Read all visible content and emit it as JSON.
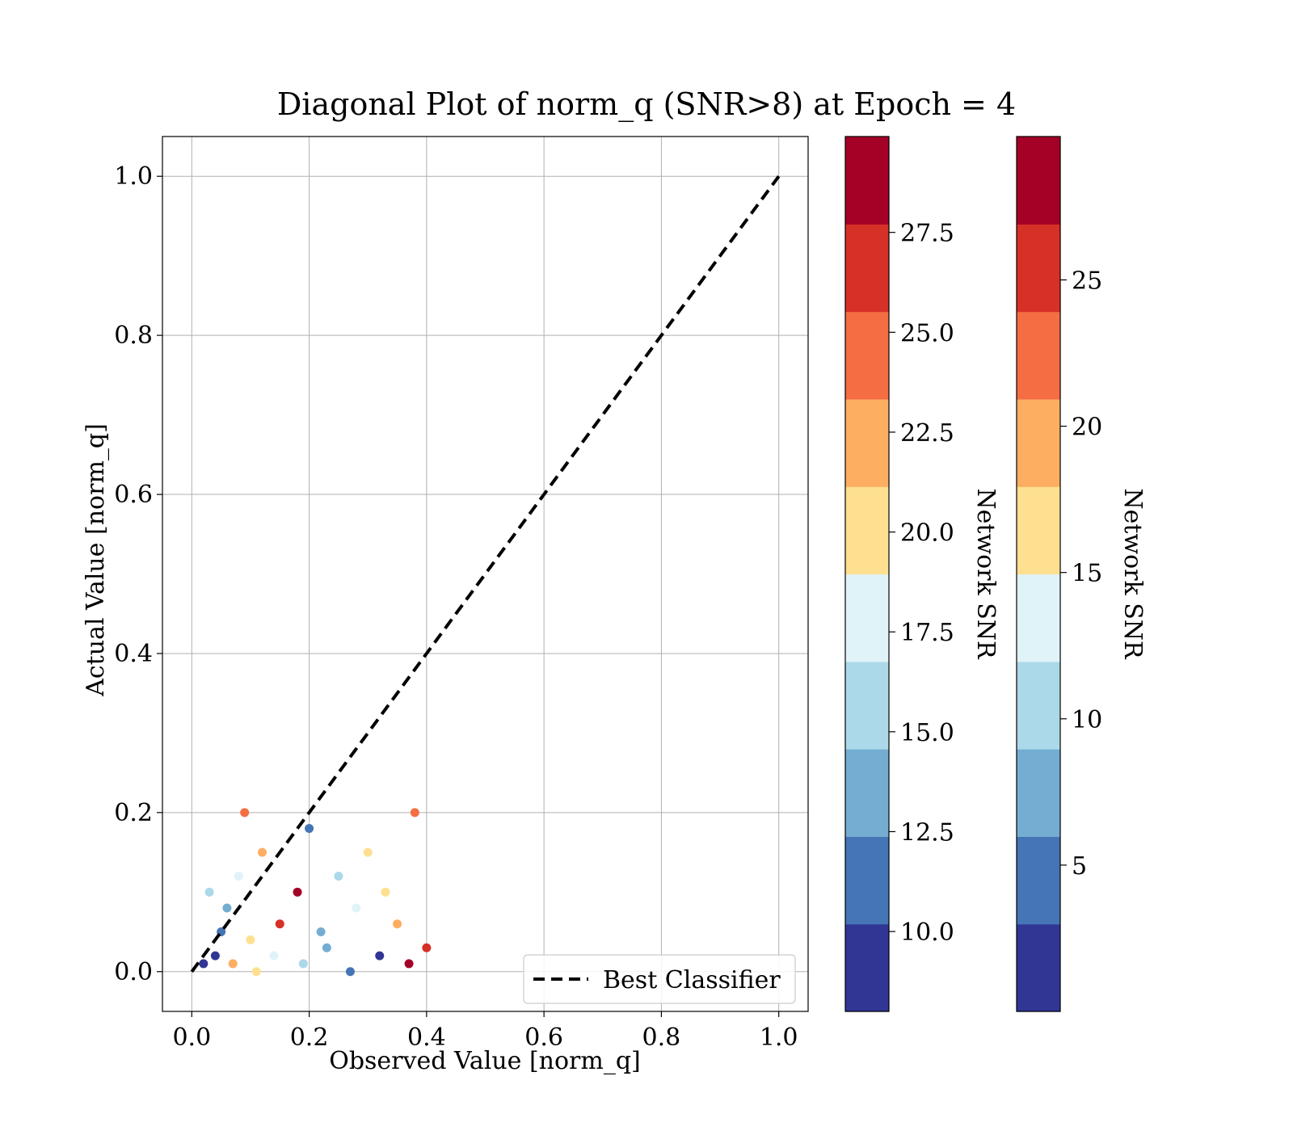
{
  "chart_data": {
    "type": "scatter",
    "title": "Diagonal Plot of norm_q (SNR>8) at Epoch = 4",
    "xlabel": "Observed Value [norm_q]",
    "ylabel": "Actual Value [norm_q]",
    "xlim": [
      -0.05,
      1.05
    ],
    "ylim": [
      -0.05,
      1.05
    ],
    "xticks": [
      "0.0",
      "0.2",
      "0.4",
      "0.6",
      "0.8",
      "1.0"
    ],
    "yticks": [
      "0.0",
      "0.2",
      "0.4",
      "0.6",
      "0.8",
      "1.0"
    ],
    "grid": true,
    "reference_line": {
      "name": "Best Classifier",
      "style": "dashed",
      "color": "#000000",
      "x": [
        0,
        1
      ],
      "y": [
        0,
        1
      ]
    },
    "legend": {
      "placement": "lower-right",
      "entries": [
        "Best Classifier"
      ]
    },
    "colormap": [
      "#313695",
      "#4575b4",
      "#74add1",
      "#abd9e9",
      "#e0f3f8",
      "#fee090",
      "#fdae61",
      "#f46d43",
      "#d73027",
      "#a50026"
    ],
    "series": [
      {
        "x": [
          0.02,
          0.04,
          0.05,
          0.06,
          0.03,
          0.08,
          0.1,
          0.12,
          0.09,
          0.15,
          0.18,
          0.2,
          0.22,
          0.25,
          0.28,
          0.3,
          0.33,
          0.35,
          0.38,
          0.4,
          0.37,
          0.32,
          0.27,
          0.23,
          0.19,
          0.14,
          0.11,
          0.07
        ],
        "y": [
          0.01,
          0.02,
          0.05,
          0.08,
          0.1,
          0.12,
          0.04,
          0.15,
          0.2,
          0.06,
          0.1,
          0.18,
          0.05,
          0.12,
          0.08,
          0.15,
          0.1,
          0.06,
          0.2,
          0.03,
          0.01,
          0.02,
          0.0,
          0.03,
          0.01,
          0.02,
          0.0,
          0.01
        ],
        "snr": [
          9,
          10,
          12,
          14,
          16,
          18,
          20,
          22,
          24,
          26,
          28,
          11,
          13,
          15,
          17,
          19,
          21,
          23,
          25,
          27,
          29,
          10,
          12,
          14,
          16,
          18,
          20,
          22
        ]
      }
    ],
    "colorbars": [
      {
        "label": "Network SNR",
        "range": [
          8,
          29.9
        ],
        "ticks": [
          "10.0",
          "12.5",
          "15.0",
          "17.5",
          "20.0",
          "22.5",
          "25.0",
          "27.5"
        ],
        "tick_values": [
          10,
          12.5,
          15,
          17.5,
          20,
          22.5,
          25,
          27.5
        ]
      },
      {
        "label": "Network SNR",
        "range": [
          0,
          29.9
        ],
        "ticks": [
          "5",
          "10",
          "15",
          "20",
          "25"
        ],
        "tick_values": [
          5,
          10,
          15,
          20,
          25
        ]
      }
    ]
  }
}
